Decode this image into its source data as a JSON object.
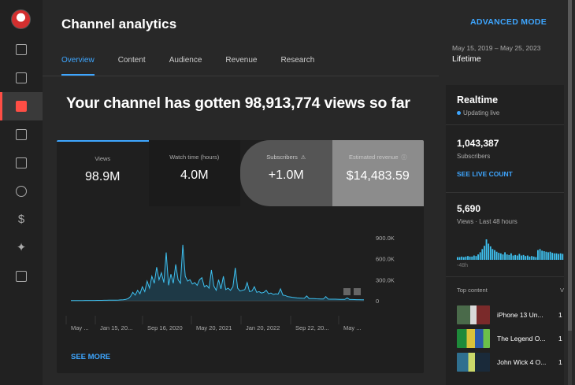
{
  "header": {
    "title": "Channel analytics",
    "advanced_mode": "ADVANCED MODE",
    "date_range": "May 15, 2019 – May 25, 2023",
    "date_label": "Lifetime"
  },
  "tabs": [
    {
      "label": "Overview",
      "active": true
    },
    {
      "label": "Content",
      "active": false
    },
    {
      "label": "Audience",
      "active": false
    },
    {
      "label": "Revenue",
      "active": false
    },
    {
      "label": "Research",
      "active": false
    }
  ],
  "rail_icons": [
    "dashboard-icon",
    "content-icon",
    "analytics-icon",
    "comments-icon",
    "subtitles-icon",
    "copyright-icon",
    "earn-icon",
    "customization-icon",
    "audio-library-icon"
  ],
  "headline": "Your channel has gotten 98,913,774 views so far",
  "metrics": [
    {
      "label": "Views",
      "value": "98.9M"
    },
    {
      "label": "Watch time (hours)",
      "value": "4.0M"
    },
    {
      "label": "Subscribers",
      "value": "+1.0M"
    },
    {
      "label": "Estimated revenue",
      "value": "$14,483.59"
    }
  ],
  "see_more": "SEE MORE",
  "chart_data": {
    "type": "line",
    "x_tick_labels": [
      "May ...",
      "Jan 15, 20...",
      "Sep 16, 2020",
      "May 20, 2021",
      "Jan 20, 2022",
      "Sep 22, 20...",
      "May ..."
    ],
    "y_tick_labels": [
      "900.0K",
      "600.0K",
      "300.0K",
      "0"
    ],
    "ylim": [
      0,
      900000
    ],
    "series": [
      {
        "values": [
          2000,
          2500,
          3000,
          3000,
          3500,
          3500,
          4000,
          4000,
          4500,
          5000,
          5000,
          5500,
          6000,
          6000,
          6500,
          7000,
          7500,
          8000,
          8000,
          9000,
          10000,
          12000,
          15000,
          20000,
          30000,
          60000,
          120000,
          80000,
          150000,
          100000,
          200000,
          130000,
          280000,
          180000,
          350000,
          250000,
          480000,
          300000,
          400000,
          260000,
          690000,
          220000,
          380000,
          250000,
          520000,
          300000,
          250000,
          800000,
          350000,
          280000,
          300000,
          240000,
          260000,
          220000,
          300000,
          330000,
          200000,
          220000,
          180000,
          440000,
          210000,
          150000,
          300000,
          170000,
          350000,
          160000,
          180000,
          150000,
          200000,
          470000,
          180000,
          140000,
          150000,
          160000,
          260000,
          130000,
          140000,
          200000,
          120000,
          130000,
          110000,
          120000,
          150000,
          100000,
          110000,
          90000,
          100000,
          95000,
          170000,
          80000,
          75000,
          60000,
          55000,
          50000,
          45000,
          40000,
          38000,
          36000,
          35000,
          70000,
          32000,
          30000,
          30000,
          28000,
          27000,
          26000,
          25000,
          60000,
          24000,
          23000,
          22000,
          22000,
          21000,
          20000,
          20000,
          19000,
          40000,
          18000,
          18000,
          17000,
          16000,
          16000,
          15000,
          15000
        ]
      }
    ],
    "grid": false
  },
  "realtime": {
    "title": "Realtime",
    "status": "Updating live",
    "subscribers_value": "1,043,387",
    "subscribers_label": "Subscribers",
    "live_count_link": "SEE LIVE COUNT",
    "views_value": "5,690",
    "views_label": "Views · Last 48 hours",
    "axis_label": "-48h",
    "mini_chart": {
      "type": "bar",
      "values": [
        5,
        5,
        6,
        5,
        6,
        7,
        6,
        6,
        8,
        7,
        10,
        14,
        20,
        26,
        38,
        30,
        25,
        20,
        18,
        15,
        13,
        12,
        10,
        14,
        10,
        9,
        12,
        8,
        9,
        8,
        11,
        8,
        9,
        7,
        8,
        6,
        7,
        6,
        5,
        18,
        20,
        17,
        16,
        15,
        14,
        15,
        13,
        12,
        12,
        11,
        12,
        11
      ]
    },
    "top_content_label": "Top content",
    "top_content_header_v": "V",
    "top_content": [
      {
        "title": "iPhone 13 Un...",
        "value": "1"
      },
      {
        "title": "The Legend O...",
        "value": "1"
      },
      {
        "title": "John Wick 4 O...",
        "value": "1"
      }
    ]
  }
}
